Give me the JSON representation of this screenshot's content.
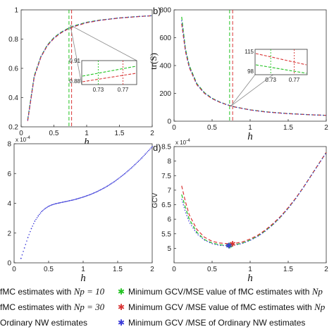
{
  "colors": {
    "green": "#22c322",
    "red": "#d93535",
    "blue": "#3b3bd8",
    "axis": "#333333",
    "callout": "#888888"
  },
  "chart_data": [
    {
      "panel": "a",
      "type": "line",
      "panel_label": "",
      "xlabel": "h",
      "ylabel": "",
      "xlim": [
        0,
        2
      ],
      "ylim": [
        0.2,
        1
      ],
      "xticks": [
        "0",
        "0.5",
        "1",
        "1.5",
        "2"
      ],
      "yticks": [
        "0.2",
        "0.4",
        "0.6",
        "0.8",
        "1"
      ],
      "vlines": [
        {
          "x": 0.73,
          "color": "green"
        },
        {
          "x": 0.77,
          "color": "red"
        }
      ],
      "x": [
        0.1,
        0.2,
        0.3,
        0.4,
        0.5,
        0.6,
        0.7,
        0.8,
        1.0,
        1.2,
        1.5,
        1.8,
        2.0
      ],
      "series": [
        {
          "values": [
            0.25,
            0.55,
            0.68,
            0.76,
            0.81,
            0.845,
            0.87,
            0.89,
            0.915,
            0.93,
            0.945,
            0.955,
            0.96
          ],
          "color": "green"
        },
        {
          "values": [
            0.24,
            0.54,
            0.675,
            0.755,
            0.805,
            0.84,
            0.865,
            0.885,
            0.912,
            0.928,
            0.944,
            0.954,
            0.96
          ],
          "color": "red"
        },
        {
          "values": [
            0.245,
            0.545,
            0.678,
            0.758,
            0.808,
            0.843,
            0.868,
            0.888,
            0.914,
            0.929,
            0.945,
            0.955,
            0.96
          ],
          "color": "blue"
        }
      ],
      "inset": {
        "xticks": [
          "0.73",
          "0.77"
        ],
        "yticks": [
          "0.91",
          "0.88"
        ]
      }
    },
    {
      "panel": "b",
      "type": "line",
      "panel_label": "b)",
      "xlabel": "h",
      "ylabel": "tr(S)",
      "xlim": [
        0,
        2
      ],
      "ylim": [
        0,
        800
      ],
      "xticks": [
        "0",
        "0.5",
        "1",
        "1.5",
        "2"
      ],
      "yticks": [
        "0",
        "200",
        "400",
        "600",
        "800"
      ],
      "vlines": [
        {
          "x": 0.73,
          "color": "green"
        },
        {
          "x": 0.77,
          "color": "red"
        }
      ],
      "x": [
        0.1,
        0.15,
        0.2,
        0.3,
        0.4,
        0.5,
        0.6,
        0.7,
        0.8,
        1.0,
        1.2,
        1.5,
        1.8,
        2.0
      ],
      "series": [
        {
          "values": [
            750,
            520,
            400,
            270,
            205,
            165,
            138,
            118,
            103,
            82,
            68,
            55,
            46,
            42
          ],
          "color": "green"
        },
        {
          "values": [
            700,
            500,
            385,
            262,
            200,
            162,
            136,
            117,
            102,
            81,
            67,
            54,
            46,
            42
          ],
          "color": "red"
        },
        {
          "values": [
            725,
            510,
            392,
            266,
            202,
            163,
            137,
            117,
            102,
            81,
            67,
            54,
            46,
            42
          ],
          "color": "blue"
        }
      ],
      "inset": {
        "xticks": [
          "0.73",
          "0.77"
        ],
        "yticks": [
          "115",
          "98"
        ]
      }
    },
    {
      "panel": "c",
      "type": "scatter",
      "panel_label": "",
      "xlabel": "h",
      "ylabel": "",
      "exponent": "x 10^-4",
      "xlim": [
        0,
        2
      ],
      "ylim": [
        0,
        8
      ],
      "xticks": [
        "0",
        "0.5",
        "1",
        "1.5",
        "2"
      ],
      "yticks": [
        "0",
        "2",
        "4",
        "6",
        "8"
      ],
      "x": [
        0.1,
        0.15,
        0.2,
        0.25,
        0.3,
        0.35,
        0.4,
        0.45,
        0.5,
        0.55,
        0.6,
        0.65,
        0.7,
        0.75,
        0.8,
        0.85,
        0.9,
        0.95,
        1.0,
        1.05,
        1.1,
        1.15,
        1.2,
        1.25,
        1.3,
        1.35,
        1.4,
        1.45,
        1.5,
        1.55,
        1.6,
        1.65,
        1.7,
        1.75,
        1.8,
        1.85,
        1.9,
        1.95,
        2.0
      ],
      "series": [
        {
          "values": [
            0.3,
            1.0,
            1.7,
            2.3,
            2.8,
            3.15,
            3.45,
            3.65,
            3.8,
            3.9,
            3.97,
            4.02,
            4.07,
            4.12,
            4.17,
            4.22,
            4.28,
            4.35,
            4.42,
            4.5,
            4.58,
            4.68,
            4.78,
            4.9,
            5.02,
            5.15,
            5.3,
            5.45,
            5.62,
            5.8,
            5.98,
            6.18,
            6.38,
            6.6,
            6.82,
            7.05,
            7.3,
            7.55,
            7.8
          ],
          "color": "blue"
        }
      ]
    },
    {
      "panel": "d",
      "type": "line",
      "panel_label": "d)",
      "xlabel": "h",
      "ylabel": "GCV",
      "exponent": "x 10^-4",
      "xlim": [
        0,
        2
      ],
      "ylim": [
        4.5,
        8.5
      ],
      "xticks": [
        "0",
        "0.5",
        "1",
        "1.5",
        "2"
      ],
      "yticks": [
        "5",
        "5.5",
        "6",
        "6.5",
        "7",
        "7.5",
        "8",
        "8.5"
      ],
      "x": [
        0.1,
        0.15,
        0.2,
        0.3,
        0.4,
        0.5,
        0.6,
        0.7,
        0.8,
        0.9,
        1.0,
        1.1,
        1.2,
        1.3,
        1.4,
        1.5,
        1.6,
        1.7,
        1.8,
        1.9,
        2.0
      ],
      "series": [
        {
          "values": [
            6.85,
            6.4,
            6.0,
            5.55,
            5.3,
            5.18,
            5.12,
            5.1,
            5.12,
            5.18,
            5.28,
            5.42,
            5.6,
            5.82,
            6.08,
            6.38,
            6.72,
            7.1,
            7.5,
            7.9,
            8.3
          ],
          "color": "green"
        },
        {
          "values": [
            7.15,
            6.6,
            6.15,
            5.65,
            5.38,
            5.24,
            5.18,
            5.16,
            5.17,
            5.22,
            5.32,
            5.45,
            5.63,
            5.85,
            6.1,
            6.4,
            6.73,
            7.1,
            7.5,
            7.9,
            8.3
          ],
          "color": "red"
        },
        {
          "values": [
            6.7,
            6.25,
            5.9,
            5.5,
            5.28,
            5.16,
            5.1,
            5.09,
            5.11,
            5.17,
            5.27,
            5.41,
            5.59,
            5.81,
            6.07,
            6.37,
            6.71,
            7.09,
            7.49,
            7.89,
            8.29
          ],
          "color": "blue"
        }
      ],
      "minima": [
        {
          "x": 0.73,
          "y": 5.1,
          "color": "green"
        },
        {
          "x": 0.77,
          "y": 5.16,
          "color": "red"
        },
        {
          "x": 0.72,
          "y": 5.09,
          "color": "blue"
        }
      ]
    }
  ],
  "legend": [
    {
      "prefix": "fMC estimates with ",
      "math": "Np = 10",
      "style": "dash",
      "color": "green"
    },
    {
      "prefix": "fMC estimates with ",
      "math": "Np = 30",
      "style": "dash",
      "color": "red"
    },
    {
      "prefix": "Ordinary NW estimates",
      "math": "",
      "style": "dot",
      "color": "blue"
    },
    {
      "prefix": "Minimum GCV/MSE value of fMC estimates with ",
      "math": "Np",
      "style": "star",
      "color": "green"
    },
    {
      "prefix": "Minimum GCV /MSE value of fMC estimates with ",
      "math": "Np",
      "style": "star",
      "color": "red"
    },
    {
      "prefix": "Minimum GCV /MSE of Ordinary NW estimates",
      "math": "",
      "style": "star",
      "color": "blue"
    }
  ]
}
